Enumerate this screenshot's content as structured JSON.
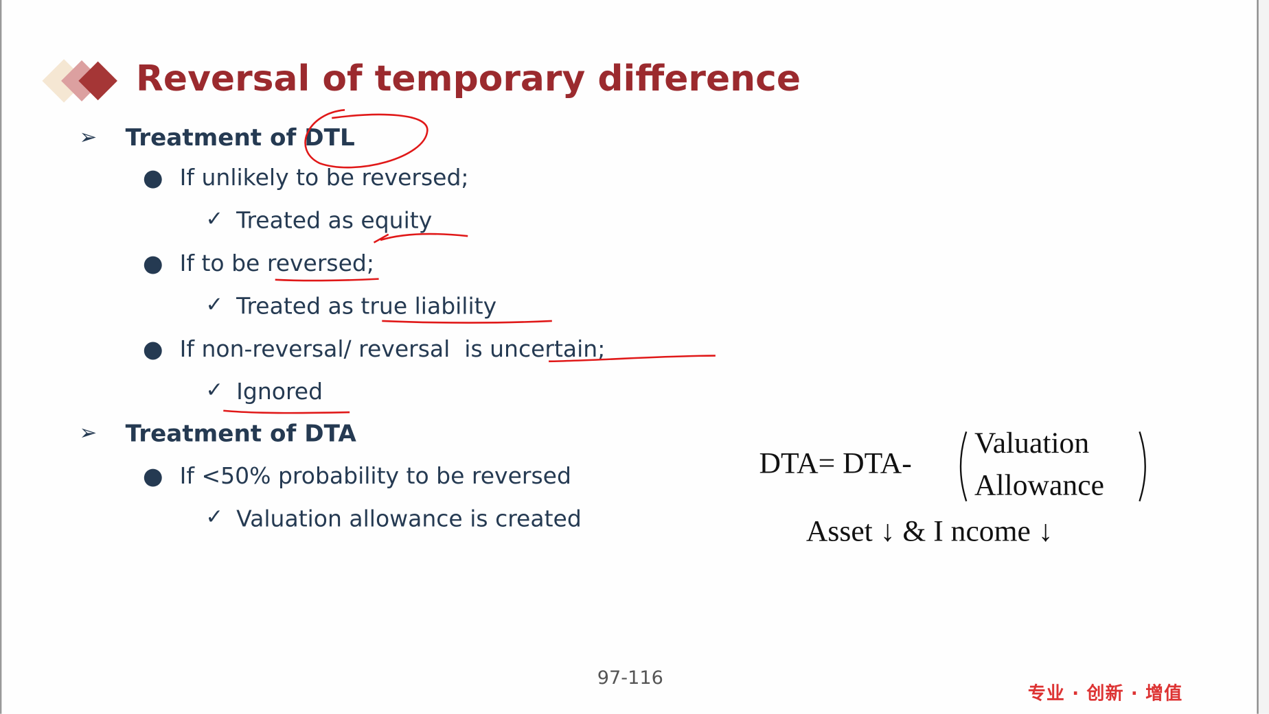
{
  "slide": {
    "title": "Reversal of temporary difference",
    "sections": [
      {
        "heading": "Treatment of DTL",
        "items": [
          {
            "condition": "If unlikely to be reversed;",
            "result": "Treated as equity"
          },
          {
            "condition": "If to be reversed;",
            "result": "Treated as true liability"
          },
          {
            "condition": "If non-reversal/ reversal  is uncertain;",
            "result": "Ignored"
          }
        ]
      },
      {
        "heading": "Treatment of DTA",
        "items": [
          {
            "condition": "If <50% probability to be reversed",
            "result": "Valuation allowance is created"
          }
        ]
      }
    ],
    "formula": {
      "lhs": "DTA= DTA-",
      "paren_line1": "Valuation",
      "paren_line2": "Allowance",
      "effect": "Asset ↓ & I ncome ↓"
    },
    "page_number": "97-116",
    "footer_slogan": "专业 · 创新 · 增值"
  },
  "colors": {
    "title": "#9b2a2e",
    "text": "#253a52",
    "annotation": "#e01818"
  }
}
